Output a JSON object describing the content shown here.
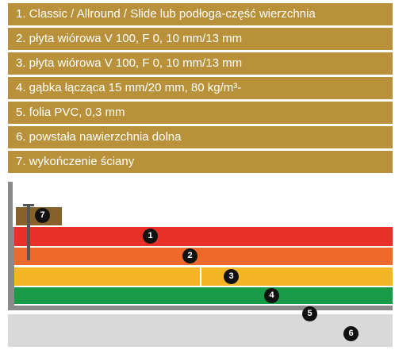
{
  "legend": {
    "items": [
      "1. Classic / Allround / Slide lub podłoga-część wierzchnia",
      "2. płyta wiórowa V 100, F 0, 10 mm/13 mm",
      "3. płyta wiórowa V 100, F 0, 10 mm/13 mm",
      "4. gąbka łącząca 15 mm/20 mm, 80 kg/m³-",
      "5. folia PVC, 0,3 mm",
      "6. powstała nawierzchnia dolna",
      "7. wykończenie ściany"
    ]
  },
  "markers": [
    "1",
    "2",
    "3",
    "4",
    "5",
    "6",
    "7"
  ],
  "colors": {
    "legend_bg": "#B8913A",
    "layer_1": "#E63028",
    "layer_2": "#EE6A2A",
    "layer_3": "#F5B625",
    "layer_4": "#1A9B48",
    "layer_5": "#8A8A8A",
    "layer_6": "#D9D9D9",
    "layer_7": "#86612A"
  }
}
